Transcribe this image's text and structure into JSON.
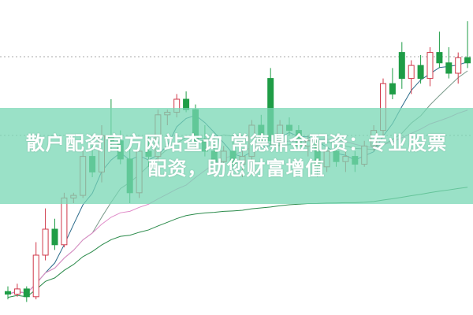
{
  "title_lines": [
    "散户配资官方网站查询 常德鼎金配资：专业股票",
    "配资，助您财富增值"
  ],
  "colors": {
    "up": "#d0384a",
    "down": "#1f9d46",
    "banner": "#78d7b4",
    "ma5": "#2a6a8a",
    "ma10": "#7a9a8a",
    "ma20": "#e08ac8",
    "ma60": "#2a8a4a"
  },
  "chart_data": {
    "type": "candlestick",
    "grid": "dotted horizontal",
    "note_fields": [
      "open",
      "high",
      "low",
      "close"
    ],
    "candles": [
      [
        6,
        8,
        3,
        5
      ],
      [
        5,
        9,
        4,
        7
      ],
      [
        7,
        8,
        2,
        4
      ],
      [
        4,
        25,
        3,
        20
      ],
      [
        20,
        38,
        18,
        30
      ],
      [
        30,
        34,
        22,
        24
      ],
      [
        24,
        44,
        23,
        42
      ],
      [
        42,
        44,
        40,
        43
      ],
      [
        43,
        60,
        42,
        58
      ],
      [
        58,
        62,
        50,
        52
      ],
      [
        52,
        70,
        48,
        66
      ],
      [
        66,
        80,
        60,
        64
      ],
      [
        64,
        68,
        55,
        57
      ],
      [
        57,
        62,
        40,
        44
      ],
      [
        44,
        62,
        42,
        60
      ],
      [
        60,
        66,
        54,
        58
      ],
      [
        58,
        76,
        56,
        74
      ],
      [
        74,
        76,
        70,
        75
      ],
      [
        75,
        82,
        73,
        80
      ],
      [
        80,
        83,
        75,
        76
      ],
      [
        76,
        78,
        60,
        64
      ],
      [
        64,
        70,
        58,
        60
      ],
      [
        60,
        66,
        52,
        56
      ],
      [
        56,
        62,
        52,
        60
      ],
      [
        60,
        64,
        54,
        55
      ],
      [
        55,
        60,
        50,
        58
      ],
      [
        58,
        72,
        56,
        70
      ],
      [
        70,
        74,
        62,
        64
      ],
      [
        88,
        92,
        62,
        64
      ],
      [
        64,
        72,
        62,
        70
      ],
      [
        70,
        73,
        66,
        68
      ],
      [
        68,
        70,
        60,
        62
      ],
      [
        62,
        66,
        58,
        64
      ],
      [
        64,
        65,
        50,
        54
      ],
      [
        54,
        62,
        52,
        60
      ],
      [
        60,
        62,
        54,
        56
      ],
      [
        56,
        60,
        52,
        58
      ],
      [
        58,
        60,
        52,
        55
      ],
      [
        55,
        64,
        54,
        62
      ],
      [
        62,
        70,
        60,
        68
      ],
      [
        68,
        88,
        66,
        86
      ],
      [
        86,
        92,
        80,
        82
      ],
      [
        98,
        102,
        84,
        88
      ],
      [
        88,
        95,
        82,
        93
      ],
      [
        93,
        97,
        86,
        88
      ],
      [
        88,
        100,
        85,
        98
      ],
      [
        98,
        106,
        92,
        94
      ],
      [
        94,
        100,
        88,
        90
      ],
      [
        90,
        98,
        86,
        96
      ],
      [
        96,
        110,
        92,
        94
      ]
    ],
    "moving_averages": [
      5,
      10,
      20,
      60
    ]
  }
}
